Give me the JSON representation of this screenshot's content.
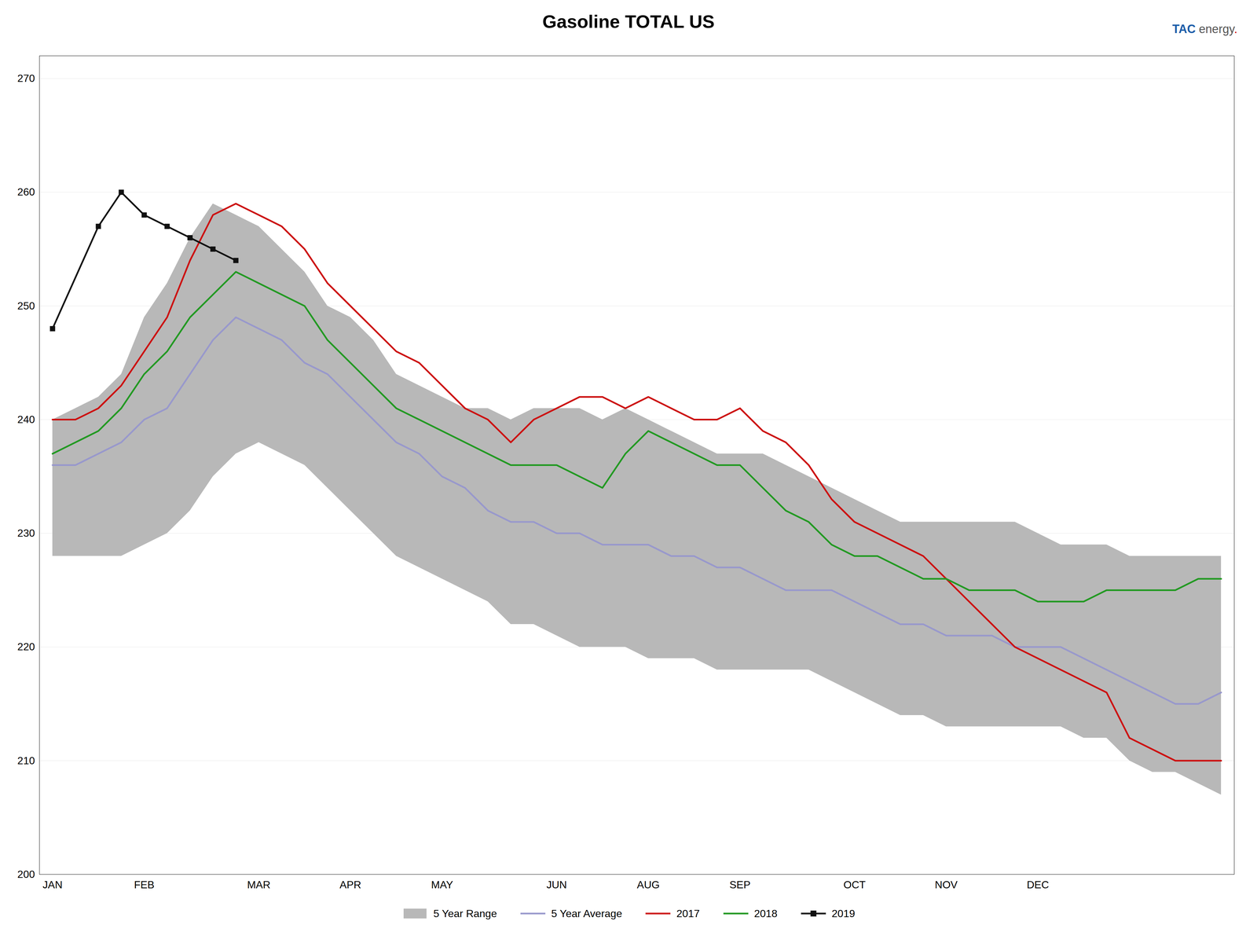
{
  "chart_data": {
    "type": "line",
    "title": "Gasoline  TOTAL US",
    "annotations": [
      {
        "text": "TAC",
        "color": "#1a5ca8"
      },
      {
        "text": "energy",
        "color": "#555555"
      },
      {
        "text": ".",
        "color": "#cc0000"
      }
    ],
    "categories": [
      "JAN",
      null,
      null,
      null,
      "FEB",
      null,
      null,
      null,
      null,
      "MAR",
      null,
      null,
      null,
      "APR",
      null,
      null,
      null,
      "MAY",
      null,
      null,
      null,
      null,
      "JUN",
      null,
      null,
      null,
      "AUG",
      null,
      null,
      null,
      "SEP",
      null,
      null,
      null,
      null,
      "OCT",
      null,
      null,
      null,
      "NOV",
      null,
      null,
      null,
      "DEC",
      null,
      null,
      null,
      null,
      null,
      null,
      null,
      null
    ],
    "series": [
      {
        "name": "5 Year Range",
        "type": "area",
        "color": "#b8b8b8",
        "lower": [
          228,
          228,
          228,
          228,
          229,
          230,
          232,
          235,
          237,
          238,
          237,
          236,
          234,
          232,
          230,
          228,
          227,
          226,
          225,
          224,
          222,
          222,
          221,
          220,
          220,
          220,
          219,
          219,
          219,
          218,
          218,
          218,
          218,
          218,
          217,
          216,
          215,
          214,
          214,
          213,
          213,
          213,
          213,
          213,
          213,
          212,
          212,
          210,
          209,
          209,
          208,
          207
        ],
        "upper": [
          240,
          241,
          242,
          244,
          249,
          252,
          256,
          259,
          258,
          257,
          255,
          253,
          250,
          249,
          247,
          244,
          243,
          242,
          241,
          241,
          240,
          241,
          241,
          241,
          240,
          241,
          240,
          239,
          238,
          237,
          237,
          237,
          236,
          235,
          234,
          233,
          232,
          231,
          231,
          231,
          231,
          231,
          231,
          230,
          229,
          229,
          229,
          228,
          228,
          228,
          228,
          228
        ]
      },
      {
        "name": "5 Year Average",
        "type": "line",
        "color": "#9898cc",
        "values": [
          236,
          236,
          237,
          238,
          240,
          241,
          244,
          247,
          249,
          248,
          247,
          245,
          244,
          242,
          240,
          238,
          237,
          235,
          234,
          232,
          231,
          231,
          230,
          230,
          229,
          229,
          229,
          228,
          228,
          227,
          227,
          226,
          225,
          225,
          225,
          224,
          223,
          222,
          222,
          221,
          221,
          221,
          220,
          220,
          220,
          219,
          218,
          217,
          216,
          215,
          215,
          216
        ]
      },
      {
        "name": "2017",
        "type": "line",
        "color": "#cc1111",
        "values": [
          240,
          240,
          241,
          243,
          246,
          249,
          254,
          258,
          259,
          258,
          257,
          255,
          252,
          250,
          248,
          246,
          245,
          243,
          241,
          240,
          238,
          240,
          241,
          242,
          242,
          241,
          242,
          241,
          240,
          240,
          241,
          239,
          238,
          236,
          233,
          231,
          230,
          229,
          228,
          226,
          224,
          222,
          220,
          219,
          218,
          217,
          216,
          212,
          211,
          210,
          210,
          210
        ]
      },
      {
        "name": "2018",
        "type": "line",
        "color": "#229922",
        "values": [
          237,
          238,
          239,
          241,
          244,
          246,
          249,
          251,
          253,
          252,
          251,
          250,
          247,
          245,
          243,
          241,
          240,
          239,
          238,
          237,
          236,
          236,
          236,
          235,
          234,
          237,
          239,
          238,
          237,
          236,
          236,
          234,
          232,
          231,
          229,
          228,
          228,
          227,
          226,
          226,
          225,
          225,
          225,
          224,
          224,
          224,
          225,
          225,
          225,
          225,
          226,
          226
        ]
      },
      {
        "name": "2019",
        "type": "line",
        "color": "#111111",
        "marker": "square",
        "values": [
          248,
          null,
          257,
          260,
          258,
          257,
          256,
          255,
          254,
          null,
          null,
          null,
          null,
          null,
          null,
          null,
          null,
          null,
          null,
          null,
          null,
          null,
          null,
          null,
          null,
          null,
          null,
          null,
          null,
          null,
          null,
          null,
          null,
          null,
          null,
          null,
          null,
          null,
          null,
          null,
          null,
          null,
          null,
          null,
          null,
          null,
          null,
          null,
          null,
          null,
          null,
          null
        ]
      }
    ],
    "ylim": [
      200,
      272
    ],
    "yticks": [
      200,
      210,
      220,
      230,
      240,
      250,
      260,
      270
    ],
    "grid": true,
    "legend": "bottom"
  }
}
